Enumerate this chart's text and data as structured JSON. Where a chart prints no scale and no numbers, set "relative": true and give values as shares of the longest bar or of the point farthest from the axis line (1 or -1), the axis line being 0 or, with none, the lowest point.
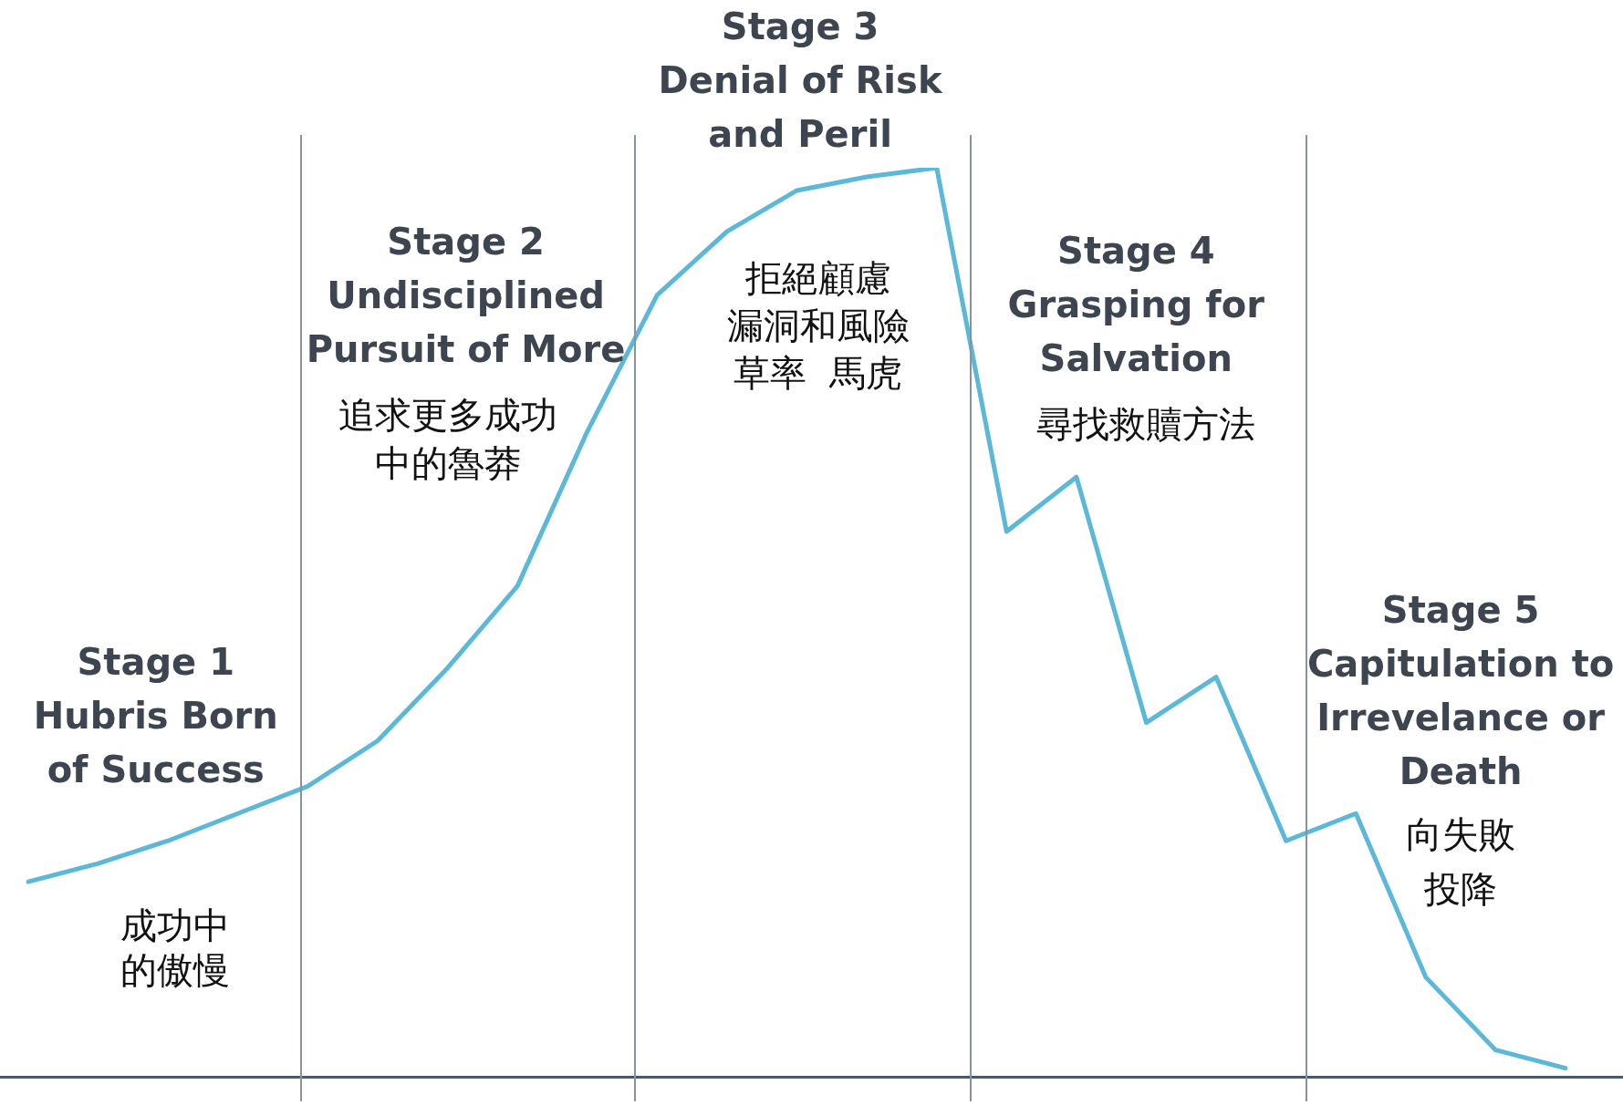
{
  "chart_data": {
    "type": "line",
    "relative": true,
    "marker": "none",
    "line_style": "solid",
    "categories": [
      null,
      null,
      null,
      null,
      null,
      null,
      null,
      null,
      null,
      null,
      null,
      null,
      null,
      null,
      null,
      null,
      null,
      null,
      null,
      null,
      null,
      null,
      null
    ],
    "series": [
      {
        "color": "#5bb8d8",
        "values": [
          0.215,
          0.235,
          0.26,
          0.29,
          0.32,
          0.37,
          0.45,
          0.54,
          0.71,
          0.86,
          0.93,
          0.975,
          0.99,
          1.0,
          0.6,
          0.66,
          0.39,
          0.44,
          0.26,
          0.29,
          0.11,
          0.03,
          0.01
        ]
      }
    ],
    "annotations": [
      "Stage 1\nHubris Born\nof Success",
      "成功中",
      "的傲慢",
      "Stage 2\nUndisciplined\nPursuit of More",
      "追求更多成功",
      "中的魯莽",
      "Stage 3\nDenial of Risk\nand Peril",
      "拒絕顧慮",
      "漏洞和風險",
      "草率  馬虎",
      "Stage 4\nGrasping for\nSalvation",
      "尋找救贖方法",
      "Stage 5\nCapitulation to\nIrrevelance or\nDeath",
      "向失敗",
      "投降"
    ]
  }
}
